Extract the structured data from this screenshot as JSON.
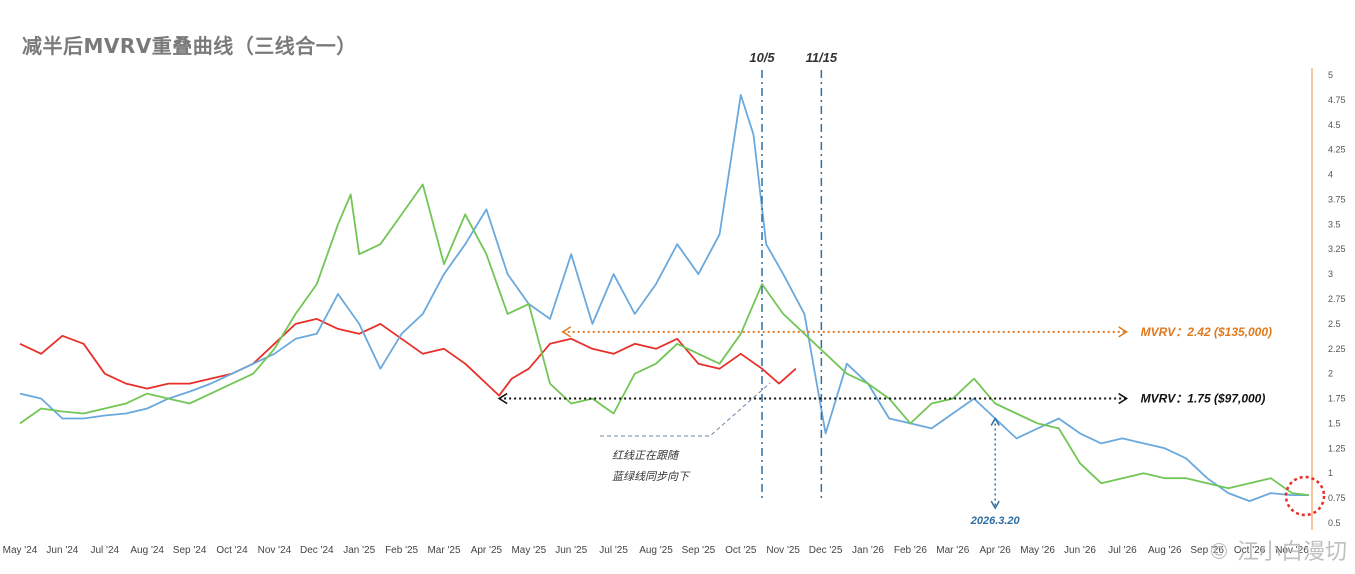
{
  "title": "减半后MVRV重叠曲线（三线合一）",
  "watermark": "© 江小白漫切",
  "chart_data": {
    "type": "line",
    "x_labels": [
      "May '24",
      "Jun '24",
      "Jul '24",
      "Aug '24",
      "Sep '24",
      "Oct '24",
      "Nov '24",
      "Dec '24",
      "Jan '25",
      "Feb '25",
      "Mar '25",
      "Apr '25",
      "May '25",
      "Jun '25",
      "Jul '25",
      "Aug '25",
      "Sep '25",
      "Oct '25",
      "Nov '25",
      "Dec '25",
      "Jan '26",
      "Feb '26",
      "Mar '26",
      "Apr '26",
      "May '26",
      "Jun '26",
      "Jul '26",
      "Aug '26",
      "Sep '26",
      "Oct '26",
      "Nov '26"
    ],
    "y_ticks": [
      0.5,
      0.75,
      1,
      1.25,
      1.5,
      1.75,
      2,
      2.25,
      2.5,
      2.75,
      3,
      3.25,
      3.5,
      3.75,
      4,
      4.25,
      4.5,
      4.75,
      5
    ],
    "ylim": [
      0.5,
      5
    ],
    "series": [
      {
        "color": "#e8302a",
        "points": [
          [
            0,
            2.3
          ],
          [
            0.5,
            2.2
          ],
          [
            1,
            2.38
          ],
          [
            1.5,
            2.3
          ],
          [
            2,
            2.0
          ],
          [
            2.5,
            1.9
          ],
          [
            3,
            1.85
          ],
          [
            3.5,
            1.9
          ],
          [
            4,
            1.9
          ],
          [
            4.5,
            1.95
          ],
          [
            5,
            2.0
          ],
          [
            5.5,
            2.1
          ],
          [
            6,
            2.3
          ],
          [
            6.5,
            2.5
          ],
          [
            7,
            2.55
          ],
          [
            7.5,
            2.45
          ],
          [
            8,
            2.4
          ],
          [
            8.5,
            2.5
          ],
          [
            9,
            2.35
          ],
          [
            9.5,
            2.2
          ],
          [
            10,
            2.25
          ],
          [
            10.5,
            2.1
          ],
          [
            11,
            1.9
          ],
          [
            11.3,
            1.78
          ],
          [
            11.6,
            1.95
          ],
          [
            12,
            2.05
          ],
          [
            12.5,
            2.3
          ],
          [
            13,
            2.35
          ],
          [
            13.5,
            2.25
          ],
          [
            14,
            2.2
          ],
          [
            14.5,
            2.3
          ],
          [
            15,
            2.25
          ],
          [
            15.5,
            2.35
          ],
          [
            16,
            2.1
          ],
          [
            16.5,
            2.05
          ],
          [
            17,
            2.2
          ],
          [
            17.5,
            2.05
          ],
          [
            17.9,
            1.9
          ],
          [
            18.3,
            2.05
          ]
        ]
      },
      {
        "color": "#6aa9dd",
        "points": [
          [
            0,
            1.8
          ],
          [
            0.5,
            1.75
          ],
          [
            1,
            1.55
          ],
          [
            1.5,
            1.55
          ],
          [
            2,
            1.58
          ],
          [
            2.5,
            1.6
          ],
          [
            3,
            1.65
          ],
          [
            3.5,
            1.75
          ],
          [
            4,
            1.82
          ],
          [
            4.5,
            1.9
          ],
          [
            5,
            2.0
          ],
          [
            5.5,
            2.1
          ],
          [
            6,
            2.2
          ],
          [
            6.5,
            2.35
          ],
          [
            7,
            2.4
          ],
          [
            7.5,
            2.8
          ],
          [
            8,
            2.5
          ],
          [
            8.5,
            2.05
          ],
          [
            9,
            2.4
          ],
          [
            9.5,
            2.6
          ],
          [
            10,
            3.0
          ],
          [
            10.5,
            3.3
          ],
          [
            11,
            3.65
          ],
          [
            11.5,
            3.0
          ],
          [
            12,
            2.7
          ],
          [
            12.5,
            2.55
          ],
          [
            13,
            3.2
          ],
          [
            13.5,
            2.5
          ],
          [
            14,
            3.0
          ],
          [
            14.5,
            2.6
          ],
          [
            15,
            2.9
          ],
          [
            15.5,
            3.3
          ],
          [
            16,
            3.0
          ],
          [
            16.5,
            3.4
          ],
          [
            17,
            4.8
          ],
          [
            17.3,
            4.4
          ],
          [
            17.6,
            3.3
          ],
          [
            18,
            3.0
          ],
          [
            18.5,
            2.6
          ],
          [
            19,
            1.4
          ],
          [
            19.5,
            2.1
          ],
          [
            20,
            1.9
          ],
          [
            20.5,
            1.55
          ],
          [
            21,
            1.5
          ],
          [
            21.5,
            1.45
          ],
          [
            22,
            1.6
          ],
          [
            22.5,
            1.75
          ],
          [
            23,
            1.55
          ],
          [
            23.5,
            1.35
          ],
          [
            24,
            1.45
          ],
          [
            24.5,
            1.55
          ],
          [
            25,
            1.4
          ],
          [
            25.5,
            1.3
          ],
          [
            26,
            1.35
          ],
          [
            26.5,
            1.3
          ],
          [
            27,
            1.25
          ],
          [
            27.5,
            1.15
          ],
          [
            28,
            0.95
          ],
          [
            28.5,
            0.8
          ],
          [
            29,
            0.72
          ],
          [
            29.5,
            0.8
          ],
          [
            30,
            0.78
          ],
          [
            30.4,
            0.78
          ]
        ]
      },
      {
        "color": "#72c656",
        "points": [
          [
            0,
            1.5
          ],
          [
            0.5,
            1.65
          ],
          [
            1,
            1.62
          ],
          [
            1.5,
            1.6
          ],
          [
            2,
            1.65
          ],
          [
            2.5,
            1.7
          ],
          [
            3,
            1.8
          ],
          [
            3.5,
            1.75
          ],
          [
            4,
            1.7
          ],
          [
            4.5,
            1.8
          ],
          [
            5,
            1.9
          ],
          [
            5.5,
            2.0
          ],
          [
            6,
            2.25
          ],
          [
            6.5,
            2.6
          ],
          [
            7,
            2.9
          ],
          [
            7.5,
            3.5
          ],
          [
            7.8,
            3.8
          ],
          [
            8,
            3.2
          ],
          [
            8.5,
            3.3
          ],
          [
            9,
            3.6
          ],
          [
            9.5,
            3.9
          ],
          [
            10,
            3.1
          ],
          [
            10.5,
            3.6
          ],
          [
            11,
            3.2
          ],
          [
            11.5,
            2.6
          ],
          [
            12,
            2.7
          ],
          [
            12.5,
            1.9
          ],
          [
            13,
            1.7
          ],
          [
            13.5,
            1.75
          ],
          [
            14,
            1.6
          ],
          [
            14.5,
            2.0
          ],
          [
            15,
            2.1
          ],
          [
            15.5,
            2.3
          ],
          [
            16,
            2.2
          ],
          [
            16.5,
            2.1
          ],
          [
            17,
            2.4
          ],
          [
            17.5,
            2.9
          ],
          [
            18,
            2.6
          ],
          [
            18.5,
            2.4
          ],
          [
            19,
            2.2
          ],
          [
            19.5,
            2.0
          ],
          [
            20,
            1.9
          ],
          [
            20.5,
            1.75
          ],
          [
            21,
            1.5
          ],
          [
            21.5,
            1.7
          ],
          [
            22,
            1.75
          ],
          [
            22.5,
            1.95
          ],
          [
            23,
            1.7
          ],
          [
            23.5,
            1.6
          ],
          [
            24,
            1.5
          ],
          [
            24.5,
            1.45
          ],
          [
            25,
            1.1
          ],
          [
            25.5,
            0.9
          ],
          [
            26,
            0.95
          ],
          [
            26.5,
            1.0
          ],
          [
            27,
            0.95
          ],
          [
            27.5,
            0.95
          ],
          [
            28,
            0.9
          ],
          [
            28.5,
            0.85
          ],
          [
            29,
            0.9
          ],
          [
            29.5,
            0.95
          ],
          [
            30,
            0.8
          ],
          [
            30.4,
            0.78
          ]
        ]
      }
    ],
    "vlines": [
      {
        "x": 17.5,
        "label": "10/5"
      },
      {
        "x": 18.9,
        "label": "11/15"
      }
    ],
    "hlines": [
      {
        "y": 2.42,
        "x_start": 12.8,
        "x_end": 26.1,
        "color": "#e07a1f",
        "label": "MVRV：2.42 ($135,000)"
      },
      {
        "y": 1.75,
        "x_start": 11.3,
        "x_end": 26.1,
        "color": "#111111",
        "label": "MVRV：1.75 ($97,000)"
      }
    ],
    "annotations": {
      "note_line1": "红线正在跟随",
      "note_line2": "蓝绿线同步向下",
      "date_label": "2026.3.20",
      "date_x": 23.0,
      "date_y_top": 1.55,
      "date_y_bottom": 0.65
    }
  }
}
